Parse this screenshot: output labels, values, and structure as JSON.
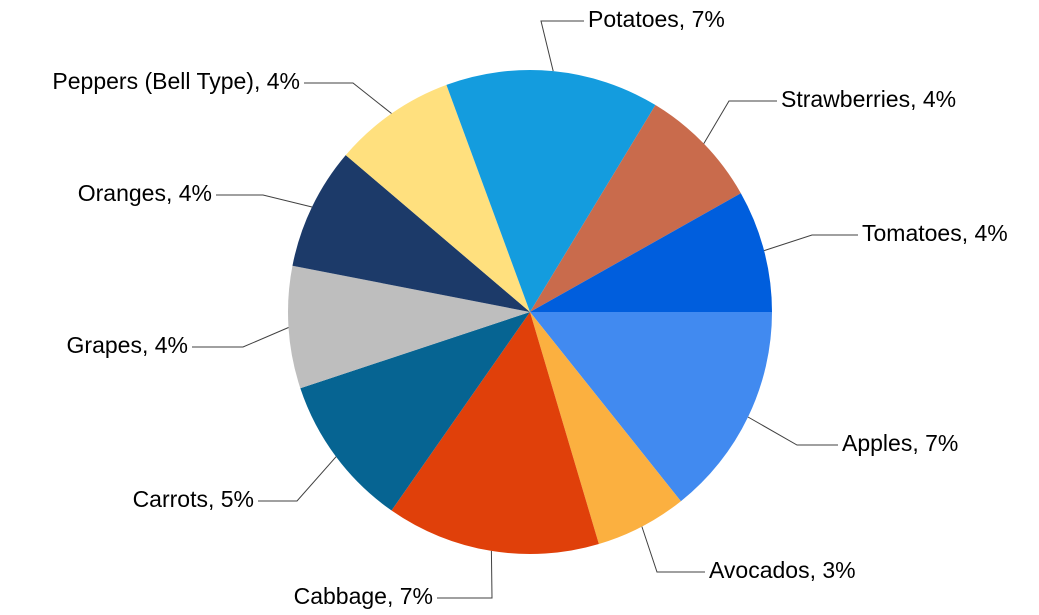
{
  "chart_data": {
    "type": "pie",
    "title": "",
    "start_angle_deg": 0,
    "direction": "clockwise",
    "slices": [
      {
        "label": "Apples, 7%",
        "name": "Apples",
        "value": 7,
        "color": "#418AF0"
      },
      {
        "label": "Avocados, 3%",
        "name": "Avocados",
        "value": 3,
        "color": "#FBB040"
      },
      {
        "label": "Cabbage, 7%",
        "name": "Cabbage",
        "value": 7,
        "color": "#E0400A"
      },
      {
        "label": "Carrots, 5%",
        "name": "Carrots",
        "value": 5,
        "color": "#066492"
      },
      {
        "label": "Grapes, 4%",
        "name": "Grapes",
        "value": 4,
        "color": "#BEBEBE"
      },
      {
        "label": "Oranges, 4%",
        "name": "Oranges",
        "value": 4,
        "color": "#1C3A69"
      },
      {
        "label": "Peppers (Bell Type), 4%",
        "name": "Peppers (Bell Type)",
        "value": 4,
        "color": "#FFE07E"
      },
      {
        "label": "Potatoes, 7%",
        "name": "Potatoes",
        "value": 7,
        "color": "#149CDE"
      },
      {
        "label": "Strawberries, 4%",
        "name": "Strawberries",
        "value": 4,
        "color": "#C96B4C"
      },
      {
        "label": "Tomatoes, 4%",
        "name": "Tomatoes",
        "value": 4,
        "color": "#005EDD"
      }
    ]
  }
}
